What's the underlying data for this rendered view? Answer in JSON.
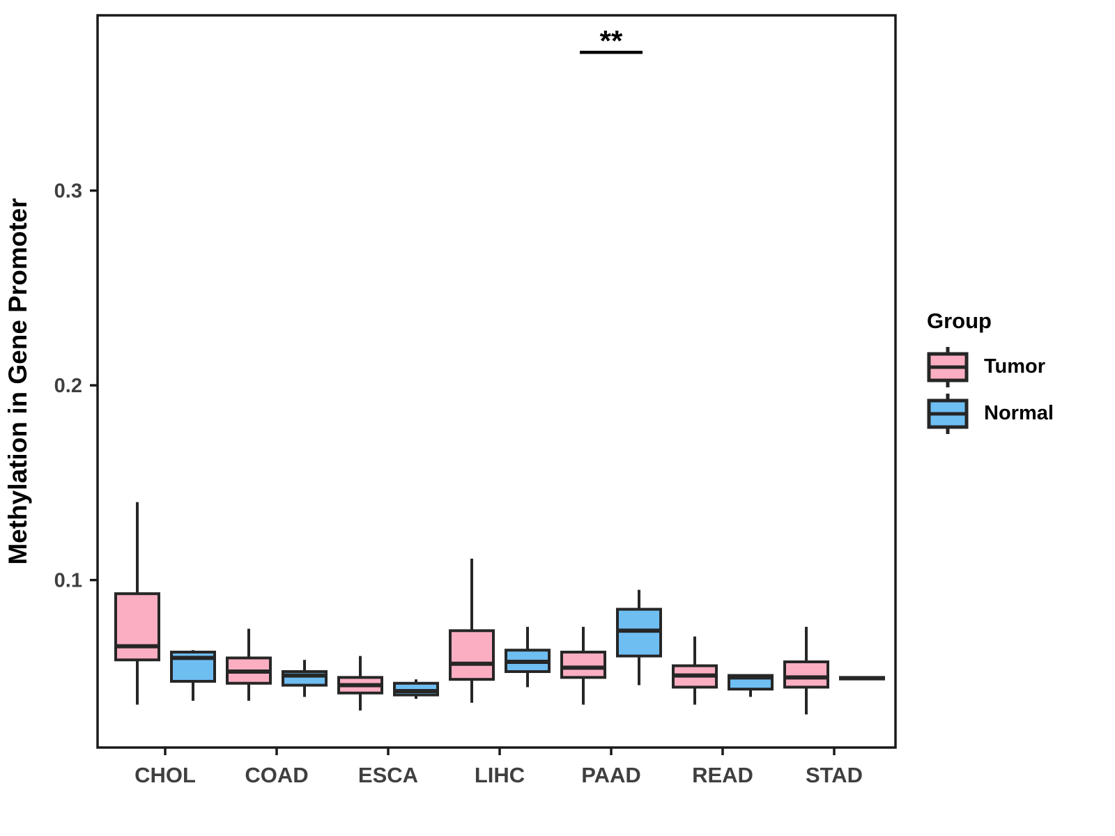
{
  "chart_data": {
    "type": "boxplot",
    "title": "",
    "ylabel": "Methylation in Gene Promoter",
    "xlabel": "",
    "categories": [
      "CHOL",
      "COAD",
      "ESCA",
      "LIHC",
      "PAAD",
      "READ",
      "STAD"
    ],
    "yticks": [
      0.1,
      0.2,
      0.3
    ],
    "ytick_labels": [
      "0.1",
      "0.2",
      "0.3"
    ],
    "ylim": [
      0.014,
      0.39
    ],
    "grid": false,
    "legend": {
      "title": "Group",
      "position": "right"
    },
    "series": [
      {
        "name": "Tumor",
        "color": "#FBAEC2",
        "boxes": [
          {
            "category": "CHOL",
            "low": 0.036,
            "q1": 0.059,
            "median": 0.066,
            "q3": 0.093,
            "high": 0.14
          },
          {
            "category": "COAD",
            "low": 0.038,
            "q1": 0.047,
            "median": 0.053,
            "q3": 0.06,
            "high": 0.075
          },
          {
            "category": "ESCA",
            "low": 0.033,
            "q1": 0.042,
            "median": 0.046,
            "q3": 0.05,
            "high": 0.061
          },
          {
            "category": "LIHC",
            "low": 0.037,
            "q1": 0.049,
            "median": 0.057,
            "q3": 0.074,
            "high": 0.111
          },
          {
            "category": "PAAD",
            "low": 0.036,
            "q1": 0.05,
            "median": 0.055,
            "q3": 0.063,
            "high": 0.076
          },
          {
            "category": "READ",
            "low": 0.036,
            "q1": 0.045,
            "median": 0.051,
            "q3": 0.056,
            "high": 0.071
          },
          {
            "category": "STAD",
            "low": 0.031,
            "q1": 0.045,
            "median": 0.05,
            "q3": 0.058,
            "high": 0.076
          }
        ]
      },
      {
        "name": "Normal",
        "color": "#6FBEF2",
        "boxes": [
          {
            "category": "CHOL",
            "low": 0.038,
            "q1": 0.048,
            "median": 0.06,
            "q3": 0.063,
            "high": 0.064
          },
          {
            "category": "COAD",
            "low": 0.04,
            "q1": 0.046,
            "median": 0.051,
            "q3": 0.053,
            "high": 0.059
          },
          {
            "category": "ESCA",
            "low": 0.039,
            "q1": 0.041,
            "median": 0.043,
            "q3": 0.047,
            "high": 0.049
          },
          {
            "category": "LIHC",
            "low": 0.045,
            "q1": 0.053,
            "median": 0.058,
            "q3": 0.064,
            "high": 0.076
          },
          {
            "category": "PAAD",
            "low": 0.046,
            "q1": 0.061,
            "median": 0.074,
            "q3": 0.085,
            "high": 0.095
          },
          {
            "category": "READ",
            "low": 0.04,
            "q1": 0.044,
            "median": 0.05,
            "q3": 0.051,
            "high": 0.051
          },
          {
            "category": "STAD",
            "low": 0.0488,
            "q1": 0.0492,
            "median": 0.0496,
            "q3": 0.05,
            "high": 0.0504
          }
        ]
      }
    ],
    "annotations": [
      {
        "label": "**",
        "category": "PAAD",
        "y": 0.371,
        "spans": [
          "Tumor",
          "Normal"
        ]
      }
    ],
    "style": {
      "box_stroke": "#262626",
      "axis_color": "#1a1a1a",
      "tick_label_color": "#3f3f3f"
    }
  }
}
